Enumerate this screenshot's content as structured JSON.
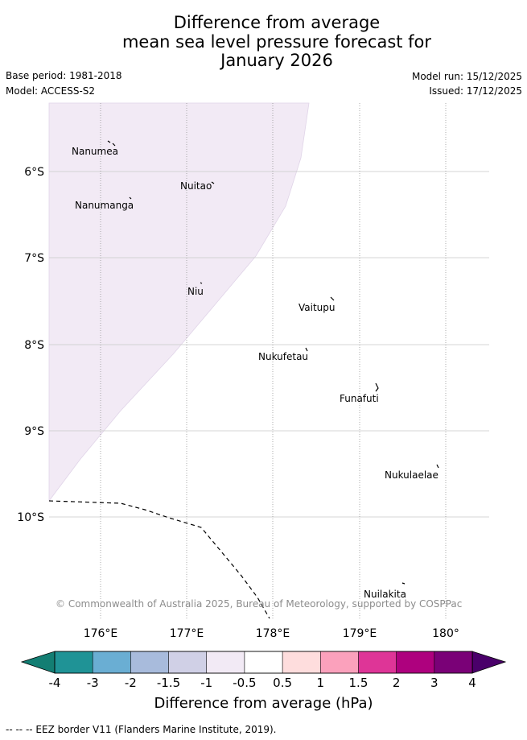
{
  "title": {
    "line1": "Difference from average",
    "line2": "mean sea level pressure forecast for",
    "line3": "January 2026"
  },
  "meta": {
    "base_period": "Base period: 1981-2018",
    "model": "Model: ACCESS-S2",
    "model_run": "Model run: 15/12/2025",
    "issued": "Issued: 17/12/2025"
  },
  "map": {
    "lat_labels": [
      "6°S",
      "7°S",
      "8°S",
      "9°S",
      "10°S"
    ],
    "lon_labels": [
      "176°E",
      "177°E",
      "178°E",
      "179°E",
      "180°"
    ],
    "places": [
      "Nanumea",
      "Nuitao",
      "Nanumanga",
      "Niu",
      "Vaitupu",
      "Nukufetau",
      "Funafuti",
      "Nukulaelae",
      "Nuilakita"
    ],
    "copyright": "© Commonwealth of Australia 2025, Bureau of Meteorology, supported by COSPPac",
    "shaded_category": "-1 to -0.5"
  },
  "colorbar": {
    "labels": [
      "-4",
      "-3",
      "-2",
      "-1.5",
      "-1",
      "-0.5",
      "0.5",
      "1",
      "1.5",
      "2",
      "3",
      "4"
    ],
    "colors": [
      "#1f9396",
      "#6aaed3",
      "#a8bbdc",
      "#d0d0e6",
      "#f2eaf5",
      "#ffffff",
      "#fedddd",
      "#fba1bc",
      "#de3597",
      "#ae017e",
      "#7a0177"
    ],
    "under_color": "#137e73",
    "over_color": "#4a006a",
    "label": "Difference from average (hPa)"
  },
  "footnote": "-- -- -- EEZ border V11 (Flanders Marine Institute, 2019)."
}
